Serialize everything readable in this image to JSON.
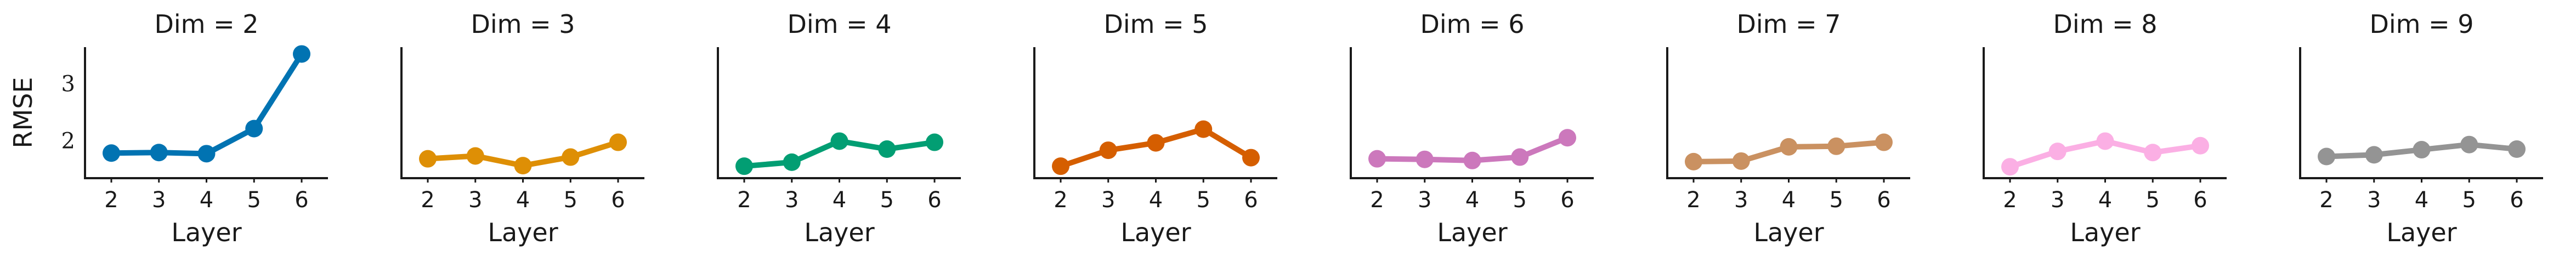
{
  "chart_data": {
    "type": "line",
    "ylabel": "RMSE",
    "xlabel": "Layer",
    "x": [
      2,
      3,
      4,
      5,
      6
    ],
    "ylim": [
      1.35,
      3.65
    ],
    "yticks": [
      2,
      3
    ],
    "grid": false,
    "legend": "none",
    "panels": [
      {
        "title": "Dim = 2",
        "color": "#0173b2",
        "values": [
          1.79,
          1.8,
          1.78,
          2.22,
          3.53
        ]
      },
      {
        "title": "Dim = 3",
        "color": "#de8f05",
        "values": [
          1.69,
          1.74,
          1.57,
          1.72,
          1.98
        ]
      },
      {
        "title": "Dim = 4",
        "color": "#029e73",
        "values": [
          1.56,
          1.63,
          2.0,
          1.86,
          1.98
        ]
      },
      {
        "title": "Dim = 5",
        "color": "#d55e00",
        "values": [
          1.56,
          1.84,
          1.97,
          2.21,
          1.71
        ]
      },
      {
        "title": "Dim = 6",
        "color": "#cc78bc",
        "values": [
          1.69,
          1.68,
          1.66,
          1.72,
          2.06
        ]
      },
      {
        "title": "Dim = 7",
        "color": "#ca9161",
        "values": [
          1.64,
          1.65,
          1.9,
          1.91,
          1.98
        ]
      },
      {
        "title": "Dim = 8",
        "color": "#fbafe4",
        "values": [
          1.55,
          1.82,
          2.0,
          1.8,
          1.92
        ]
      },
      {
        "title": "Dim = 9",
        "color": "#949494",
        "values": [
          1.73,
          1.76,
          1.85,
          1.94,
          1.86
        ]
      }
    ]
  }
}
